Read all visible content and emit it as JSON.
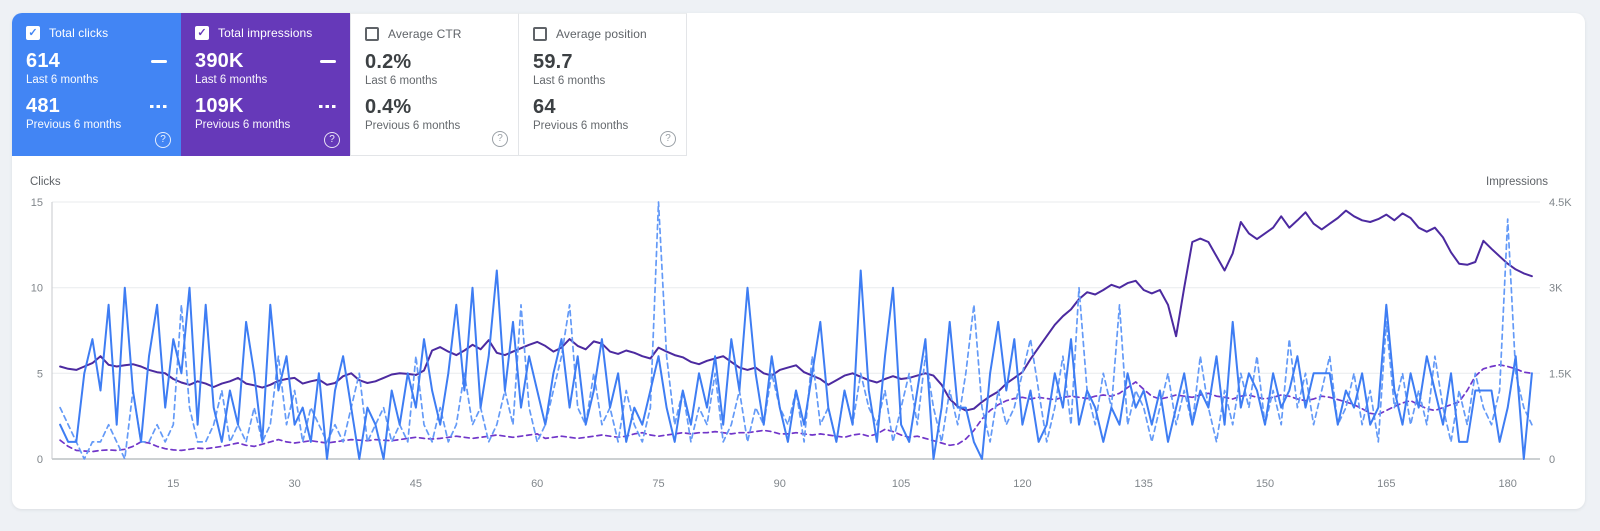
{
  "cards": [
    {
      "label": "Total clicks",
      "checked": true,
      "check_glyph": "✓",
      "accent_color": "#4285f4",
      "value_current": "614",
      "caption_current": "Last 6 months",
      "value_previous": "481",
      "caption_previous": "Previous 6 months",
      "help_glyph": "?"
    },
    {
      "label": "Total impressions",
      "checked": true,
      "check_glyph": "✓",
      "accent_color": "#6639b9",
      "value_current": "390K",
      "caption_current": "Last 6 months",
      "value_previous": "109K",
      "caption_previous": "Previous 6 months",
      "help_glyph": "?"
    },
    {
      "label": "Average CTR",
      "checked": false,
      "check_glyph": "",
      "accent_color": "#ffffff",
      "value_current": "0.2%",
      "caption_current": "Last 6 months",
      "value_previous": "0.4%",
      "caption_previous": "Previous 6 months",
      "help_glyph": "?"
    },
    {
      "label": "Average position",
      "checked": false,
      "check_glyph": "",
      "accent_color": "#ffffff",
      "value_current": "59.7",
      "caption_current": "Last 6 months",
      "value_previous": "64",
      "caption_previous": "Previous 6 months",
      "help_glyph": "?"
    }
  ],
  "chart_data": {
    "type": "line",
    "grid": true,
    "left_axis": {
      "title": "Clicks",
      "tick_values": [
        0,
        5,
        10,
        15
      ],
      "max": 15
    },
    "right_axis": {
      "title": "Impressions",
      "tick_labels": [
        "0",
        "1.5K",
        "3K",
        "4.5K"
      ],
      "max": 4.5
    },
    "x_axis": {
      "tick_values": [
        15,
        30,
        45,
        60,
        75,
        90,
        105,
        120,
        135,
        150,
        165,
        180
      ],
      "min": 1,
      "max": 183
    },
    "series": [
      {
        "name": "Total impressions — Previous 6 months",
        "axis": "right",
        "style": "dashed",
        "color": "#7136c9",
        "values": [
          0.33,
          0.22,
          0.15,
          0.14,
          0.13,
          0.15,
          0.16,
          0.15,
          0.17,
          0.22,
          0.3,
          0.28,
          0.22,
          0.18,
          0.16,
          0.15,
          0.17,
          0.19,
          0.18,
          0.2,
          0.22,
          0.25,
          0.28,
          0.24,
          0.22,
          0.26,
          0.3,
          0.34,
          0.3,
          0.28,
          0.3,
          0.32,
          0.3,
          0.28,
          0.3,
          0.32,
          0.34,
          0.33,
          0.32,
          0.34,
          0.33,
          0.32,
          0.34,
          0.36,
          0.38,
          0.36,
          0.35,
          0.36,
          0.38,
          0.4,
          0.38,
          0.36,
          0.38,
          0.4,
          0.42,
          0.4,
          0.38,
          0.4,
          0.42,
          0.44,
          0.36,
          0.38,
          0.4,
          0.38,
          0.36,
          0.38,
          0.4,
          0.42,
          0.4,
          0.38,
          0.4,
          0.44,
          0.46,
          0.42,
          0.4,
          0.42,
          0.44,
          0.46,
          0.44,
          0.46,
          0.46,
          0.48,
          0.46,
          0.44,
          0.46,
          0.46,
          0.48,
          0.5,
          0.48,
          0.44,
          0.44,
          0.46,
          0.44,
          0.42,
          0.44,
          0.42,
          0.4,
          0.38,
          0.42,
          0.44,
          0.4,
          0.44,
          0.52,
          0.48,
          0.42,
          0.38,
          0.4,
          0.36,
          0.32,
          0.28,
          0.24,
          0.26,
          0.35,
          0.5,
          0.7,
          0.85,
          0.95,
          1.02,
          1.06,
          1.08,
          1.05,
          1.08,
          1.06,
          1.04,
          1.08,
          1.1,
          1.08,
          1.06,
          1.1,
          1.12,
          1.1,
          1.15,
          1.25,
          1.35,
          1.22,
          1.1,
          1.05,
          1.08,
          1.12,
          1.1,
          1.08,
          1.12,
          1.15,
          1.1,
          1.08,
          1.05,
          1.1,
          1.12,
          1.08,
          1.05,
          1.08,
          1.12,
          1.1,
          1.05,
          1.02,
          1.05,
          1.1,
          1.08,
          1.04,
          1.0,
          0.95,
          0.88,
          0.8,
          0.78,
          0.85,
          0.92,
          0.98,
          1.02,
          0.95,
          0.88,
          0.85,
          0.9,
          0.95,
          1.0,
          1.2,
          1.45,
          1.58,
          1.62,
          1.65,
          1.62,
          1.58,
          1.52,
          1.5
        ]
      },
      {
        "name": "Total impressions — Last 6 months",
        "axis": "right",
        "style": "solid",
        "color": "#4c2aa0",
        "values": [
          1.62,
          1.58,
          1.56,
          1.62,
          1.68,
          1.8,
          1.65,
          1.62,
          1.64,
          1.66,
          1.62,
          1.56,
          1.52,
          1.5,
          1.4,
          1.34,
          1.3,
          1.36,
          1.32,
          1.26,
          1.32,
          1.36,
          1.42,
          1.32,
          1.29,
          1.25,
          1.3,
          1.37,
          1.4,
          1.42,
          1.32,
          1.36,
          1.39,
          1.3,
          1.33,
          1.45,
          1.5,
          1.38,
          1.33,
          1.36,
          1.42,
          1.48,
          1.5,
          1.49,
          1.47,
          1.55,
          1.9,
          1.96,
          1.88,
          1.82,
          1.9,
          2.0,
          1.92,
          2.08,
          1.86,
          1.82,
          1.88,
          1.94,
          2.0,
          2.05,
          1.98,
          1.88,
          1.95,
          2.1,
          1.98,
          1.92,
          2.06,
          2.02,
          1.88,
          1.84,
          1.9,
          1.86,
          1.8,
          1.76,
          1.95,
          1.88,
          1.82,
          1.78,
          1.7,
          1.66,
          1.72,
          1.76,
          1.8,
          1.7,
          1.6,
          1.56,
          1.6,
          1.5,
          1.46,
          1.56,
          1.6,
          1.64,
          1.52,
          1.46,
          1.4,
          1.3,
          1.38,
          1.46,
          1.5,
          1.44,
          1.38,
          1.34,
          1.4,
          1.45,
          1.4,
          1.42,
          1.46,
          1.5,
          1.46,
          1.3,
          1.05,
          0.92,
          0.85,
          0.88,
          1.0,
          1.1,
          1.18,
          1.32,
          1.42,
          1.52,
          1.75,
          1.95,
          2.15,
          2.35,
          2.5,
          2.62,
          2.8,
          2.92,
          2.88,
          2.96,
          3.05,
          3.0,
          3.08,
          3.12,
          2.96,
          2.9,
          2.96,
          2.7,
          2.15,
          3.0,
          3.8,
          3.86,
          3.8,
          3.55,
          3.3,
          3.6,
          4.15,
          3.95,
          3.85,
          3.95,
          4.05,
          4.25,
          4.05,
          4.18,
          4.32,
          4.12,
          4.02,
          4.12,
          4.22,
          4.35,
          4.25,
          4.18,
          4.15,
          4.2,
          4.28,
          4.18,
          4.3,
          4.22,
          4.05,
          3.98,
          4.05,
          3.88,
          3.62,
          3.42,
          3.4,
          3.45,
          3.82,
          3.68,
          3.55,
          3.42,
          3.32,
          3.25,
          3.2
        ]
      },
      {
        "name": "Total clicks — Previous 6 months",
        "axis": "left",
        "style": "dashed",
        "color": "#649af7",
        "values": [
          3,
          2,
          1,
          0,
          1,
          1,
          2,
          1,
          0,
          4,
          1,
          1,
          2,
          1,
          2,
          9,
          3,
          1,
          1,
          2,
          4,
          1,
          2,
          1,
          3,
          1,
          2,
          6,
          2,
          4,
          1,
          3,
          2,
          1,
          2,
          1,
          3,
          5,
          1,
          2,
          3,
          1,
          2,
          1,
          6,
          2,
          1,
          3,
          1,
          2,
          5,
          2,
          3,
          1,
          2,
          4,
          2,
          9,
          3,
          1,
          2,
          4,
          6,
          9,
          3,
          2,
          5,
          2,
          3,
          1,
          4,
          2,
          1,
          3,
          15,
          6,
          2,
          4,
          1,
          3,
          2,
          5,
          1,
          2,
          4,
          1,
          3,
          2,
          5,
          3,
          2,
          4,
          1,
          6,
          2,
          3,
          1,
          4,
          2,
          5,
          3,
          2,
          4,
          1,
          3,
          5,
          2,
          6,
          3,
          1,
          4,
          2,
          5,
          9,
          3,
          1,
          4,
          2,
          3,
          5,
          7,
          4,
          1,
          3,
          6,
          2,
          10,
          4,
          2,
          5,
          3,
          9,
          2,
          4,
          3,
          1,
          3,
          5,
          2,
          4,
          2,
          6,
          3,
          1,
          4,
          2,
          5,
          3,
          6,
          2,
          4,
          2,
          7,
          3,
          5,
          2,
          4,
          6,
          2,
          3,
          5,
          2,
          4,
          1,
          8,
          3,
          5,
          2,
          4,
          2,
          6,
          3,
          1,
          4,
          2,
          5,
          3,
          2,
          4,
          14,
          5,
          3,
          2
        ]
      },
      {
        "name": "Total clicks — Last 6 months",
        "axis": "left",
        "style": "solid",
        "color": "#3e7df3",
        "values": [
          2,
          1,
          1,
          5,
          7,
          4,
          9,
          2,
          10,
          4,
          1,
          6,
          9,
          3,
          7,
          5,
          10,
          2,
          9,
          3,
          1,
          4,
          2,
          8,
          5,
          1,
          9,
          4,
          6,
          2,
          3,
          1,
          5,
          0,
          4,
          6,
          3,
          0,
          3,
          2,
          0,
          4,
          2,
          5,
          3,
          7,
          4,
          2,
          5,
          9,
          4,
          10,
          3,
          6,
          11,
          4,
          8,
          3,
          6,
          4,
          2,
          5,
          7,
          3,
          6,
          2,
          4,
          7,
          3,
          5,
          1,
          3,
          2,
          4,
          6,
          3,
          1,
          4,
          2,
          5,
          3,
          6,
          2,
          7,
          4,
          10,
          5,
          2,
          6,
          3,
          1,
          4,
          2,
          5,
          8,
          3,
          1,
          4,
          2,
          11,
          4,
          1,
          6,
          10,
          2,
          1,
          4,
          7,
          0,
          3,
          8,
          3,
          3,
          1,
          0,
          5,
          8,
          4,
          7,
          2,
          4,
          1,
          2,
          5,
          3,
          7,
          2,
          4,
          3,
          1,
          3,
          2,
          5,
          3,
          4,
          2,
          4,
          1,
          3,
          5,
          2,
          4,
          3,
          6,
          2,
          8,
          3,
          5,
          4,
          2,
          5,
          3,
          4,
          6,
          3,
          5,
          5,
          5,
          2,
          4,
          3,
          5,
          2,
          3,
          9,
          4,
          2,
          5,
          3,
          6,
          4,
          2,
          5,
          1,
          1,
          4,
          4,
          4,
          1,
          3,
          6,
          0,
          5
        ]
      }
    ]
  }
}
